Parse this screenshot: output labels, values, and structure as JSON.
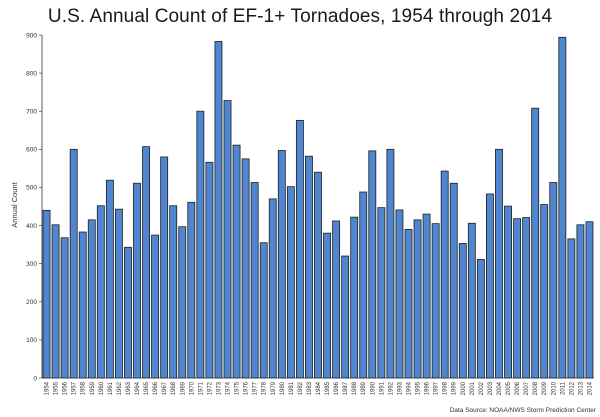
{
  "chart_data": {
    "type": "bar",
    "title": "U.S. Annual Count of EF-1+ Tornadoes, 1954 through 2014",
    "ylabel": "Annual Count",
    "xlabel": "",
    "ylim": [
      0,
      900
    ],
    "yticks": [
      0,
      100,
      200,
      300,
      400,
      500,
      600,
      700,
      800,
      900
    ],
    "grid": false,
    "bar_color": "#4f86cf",
    "bar_edge": "#1f1f1f",
    "source_note": "Data Source: NOAA/NWS Storm Prediction Center",
    "categories": [
      "1954",
      "1955",
      "1956",
      "1957",
      "1958",
      "1959",
      "1960",
      "1961",
      "1962",
      "1963",
      "1964",
      "1965",
      "1966",
      "1967",
      "1968",
      "1969",
      "1970",
      "1971",
      "1972",
      "1973",
      "1974",
      "1975",
      "1976",
      "1977",
      "1978",
      "1979",
      "1980",
      "1981",
      "1982",
      "1983",
      "1984",
      "1985",
      "1986",
      "1987",
      "1988",
      "1989",
      "1990",
      "1991",
      "1992",
      "1993",
      "1994",
      "1995",
      "1996",
      "1997",
      "1998",
      "1999",
      "2000",
      "2001",
      "2002",
      "2003",
      "2004",
      "2005",
      "2006",
      "2007",
      "2008",
      "2009",
      "2010",
      "2011",
      "2012",
      "2013",
      "2014"
    ],
    "values": [
      440,
      402,
      368,
      600,
      383,
      415,
      452,
      519,
      443,
      343,
      511,
      607,
      375,
      580,
      452,
      397,
      461,
      700,
      566,
      883,
      728,
      611,
      575,
      513,
      355,
      470,
      597,
      502,
      676,
      582,
      540,
      380,
      412,
      320,
      422,
      488,
      596,
      447,
      600,
      441,
      390,
      415,
      430,
      405,
      543,
      511,
      353,
      406,
      311,
      483,
      600,
      451,
      418,
      421,
      708,
      455,
      513,
      894,
      365,
      402,
      410
    ]
  }
}
